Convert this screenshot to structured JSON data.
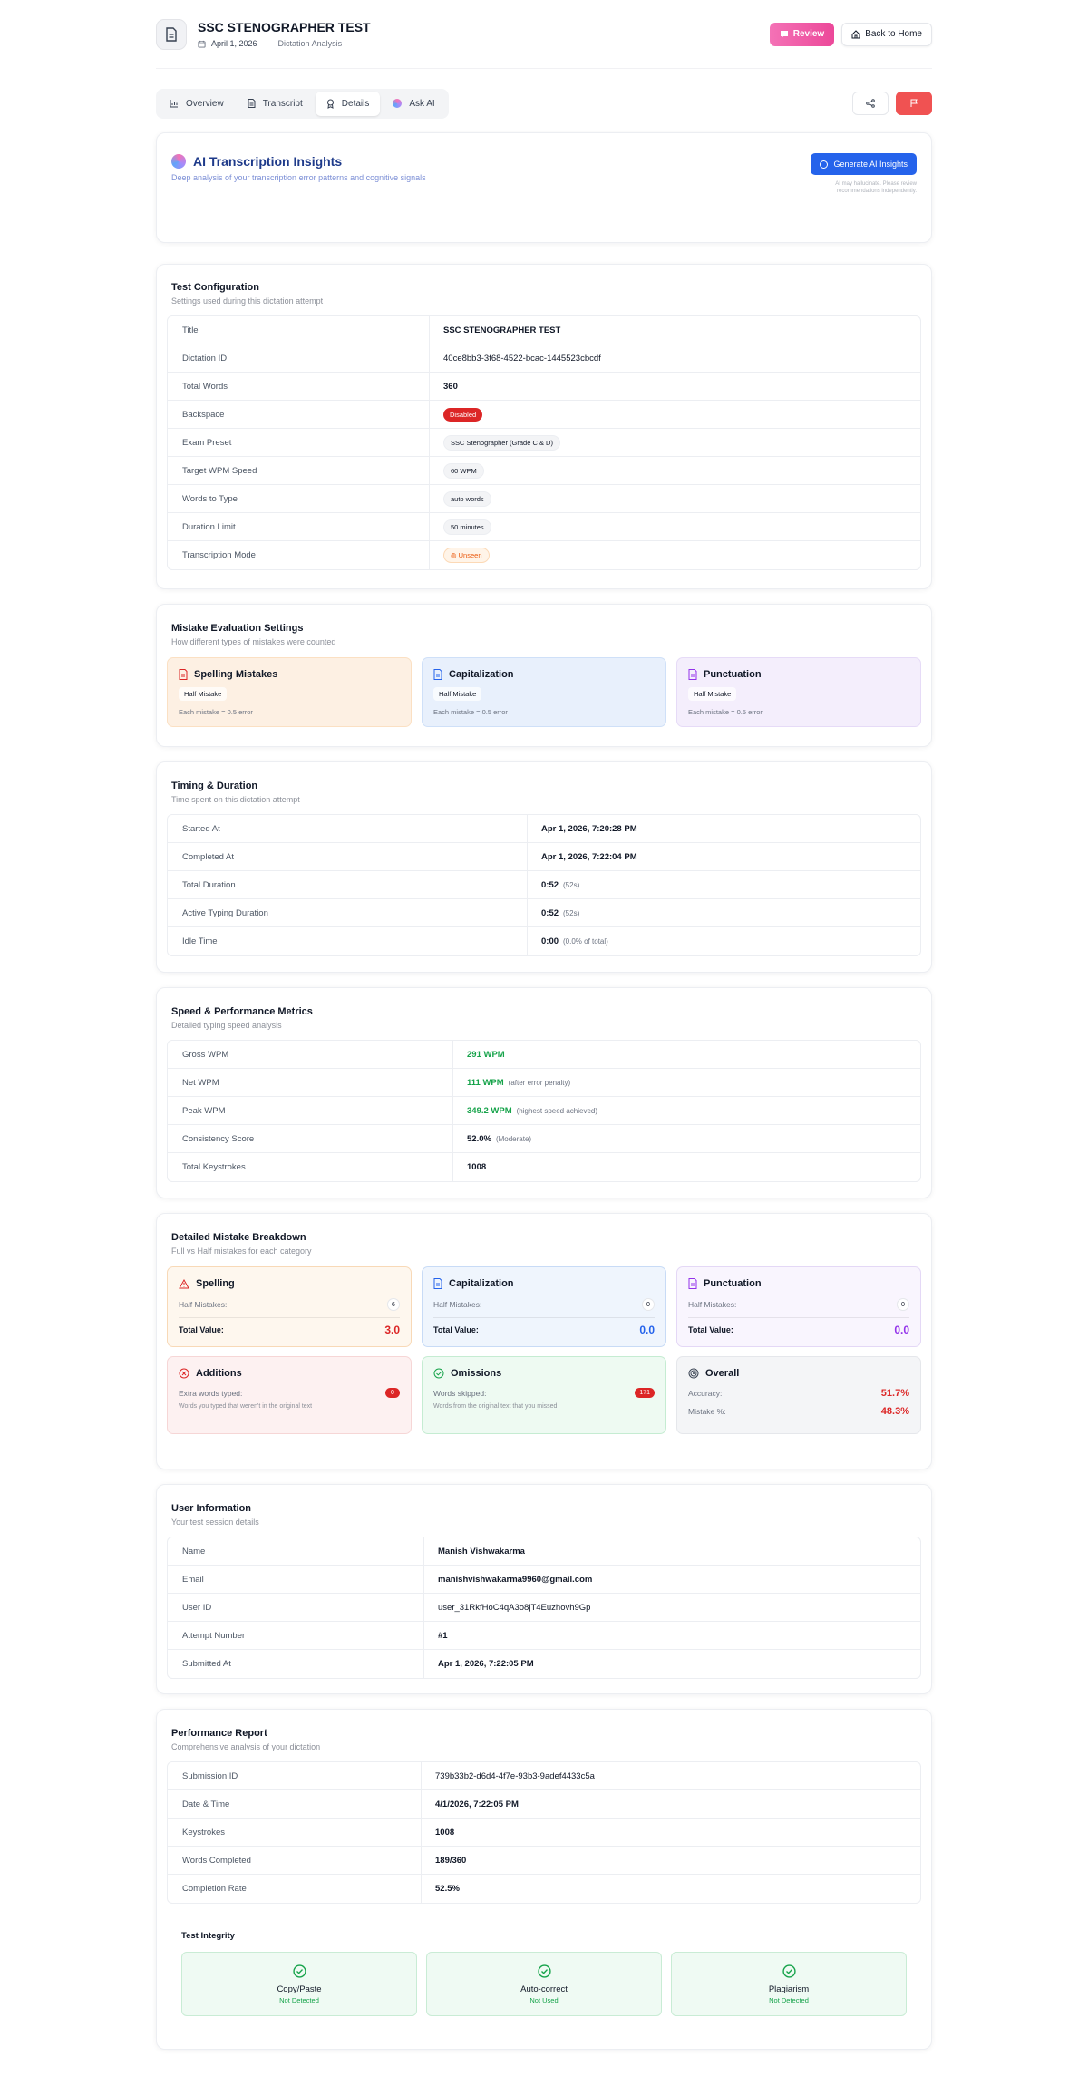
{
  "header": {
    "title": "SSC STENOGRAPHER TEST",
    "date": "April 1, 2026",
    "subtitle": "Dictation Analysis",
    "review_label": "Review",
    "home_label": "Back to Home"
  },
  "tabs": [
    {
      "label": "Overview",
      "icon": "bar-chart-icon"
    },
    {
      "label": "Transcript",
      "icon": "document-icon"
    },
    {
      "label": "Details",
      "icon": "award-icon",
      "active": true
    },
    {
      "label": "Ask AI",
      "icon": "ai-orb-icon"
    }
  ],
  "ai_insights": {
    "title": "AI Transcription Insights",
    "subtitle": "Deep analysis of your transcription error patterns and cognitive signals",
    "button": "Generate AI Insights",
    "disclaimer": "AI may hallucinate. Please review recommendations independently."
  },
  "test_config": {
    "title": "Test Configuration",
    "subtitle": "Settings used during this dictation attempt",
    "rows": [
      {
        "label": "Title",
        "value": "SSC STENOGRAPHER TEST"
      },
      {
        "label": "Dictation ID",
        "value": "40ce8bb3-3f68-4522-bcac-1445523cbcdf"
      },
      {
        "label": "Total Words",
        "value": "360"
      },
      {
        "label": "Backspace",
        "value": "Disabled"
      },
      {
        "label": "Exam Preset",
        "value": "SSC Stenographer (Grade C & D)"
      },
      {
        "label": "Target WPM Speed",
        "value": "60 WPM"
      },
      {
        "label": "Words to Type",
        "value": "auto words"
      },
      {
        "label": "Duration Limit",
        "value": "50 minutes"
      },
      {
        "label": "Transcription Mode",
        "value": "Unseen"
      }
    ]
  },
  "mistake_settings": {
    "title": "Mistake Evaluation Settings",
    "subtitle": "How different types of mistakes were counted",
    "tiles": [
      {
        "name": "Spelling Mistakes",
        "badge": "Half Mistake",
        "note": "Each mistake = 0.5 error"
      },
      {
        "name": "Capitalization",
        "badge": "Half Mistake",
        "note": "Each mistake = 0.5 error"
      },
      {
        "name": "Punctuation",
        "badge": "Half Mistake",
        "note": "Each mistake = 0.5 error"
      }
    ]
  },
  "timing": {
    "title": "Timing & Duration",
    "subtitle": "Time spent on this dictation attempt",
    "rows": [
      {
        "label": "Started At",
        "value": "Apr 1, 2026, 7:20:28 PM",
        "extra": ""
      },
      {
        "label": "Completed At",
        "value": "Apr 1, 2026, 7:22:04 PM",
        "extra": ""
      },
      {
        "label": "Total Duration",
        "value": "0:52",
        "extra": "(52s)"
      },
      {
        "label": "Active Typing Duration",
        "value": "0:52",
        "extra": "(52s)"
      },
      {
        "label": "Idle Time",
        "value": "0:00",
        "extra": "(0.0% of total)"
      }
    ]
  },
  "speed": {
    "title": "Speed & Performance Metrics",
    "subtitle": "Detailed typing speed analysis",
    "rows": [
      {
        "label": "Gross WPM",
        "value": "291 WPM",
        "extra": ""
      },
      {
        "label": "Net WPM",
        "value": "111 WPM",
        "extra": "(after error penalty)"
      },
      {
        "label": "Peak WPM",
        "value": "349.2 WPM",
        "extra": "(highest speed achieved)"
      },
      {
        "label": "Consistency Score",
        "value": "52.0%",
        "extra": "(Moderate)"
      },
      {
        "label": "Total Keystrokes",
        "value": "1008",
        "extra": ""
      }
    ]
  },
  "breakdown": {
    "title": "Detailed Mistake Breakdown",
    "subtitle": "Full vs Half mistakes for each category",
    "half_label": "Half Mistakes:",
    "total_label": "Total Value:",
    "spelling": {
      "name": "Spelling",
      "half": "6",
      "total": "3.0"
    },
    "capitalization": {
      "name": "Capitalization",
      "half": "0",
      "total": "0.0"
    },
    "punctuation": {
      "name": "Punctuation",
      "half": "0",
      "total": "0.0"
    },
    "additions": {
      "name": "Additions",
      "label": "Extra words typed:",
      "count": "0",
      "note": "Words you typed that weren't in the original text"
    },
    "omissions": {
      "name": "Omissions",
      "label": "Words skipped:",
      "count": "171",
      "note": "Words from the original text that you missed"
    },
    "overall": {
      "name": "Overall",
      "accuracy_label": "Accuracy:",
      "accuracy": "51.7%",
      "mistake_label": "Mistake %:",
      "mistake": "48.3%"
    }
  },
  "user_info": {
    "title": "User Information",
    "subtitle": "Your test session details",
    "rows": [
      {
        "label": "Name",
        "value": "Manish Vishwakarma",
        "bold": true
      },
      {
        "label": "Email",
        "value": "manishvishwakarma9960@gmail.com",
        "bold": true
      },
      {
        "label": "User ID",
        "value": "user_31RkfHoC4qA3o8jT4Euzhovh9Gp",
        "bold": false
      },
      {
        "label": "Attempt Number",
        "value": "#1",
        "bold": true
      },
      {
        "label": "Submitted At",
        "value": "Apr 1, 2026, 7:22:05 PM",
        "bold": true
      }
    ]
  },
  "report": {
    "title": "Performance Report",
    "subtitle": "Comprehensive analysis of your dictation",
    "rows": [
      {
        "label": "Submission ID",
        "value": "739b33b2-d6d4-4f7e-93b3-9adef4433c5a",
        "bold": false
      },
      {
        "label": "Date & Time",
        "value": "4/1/2026, 7:22:05 PM",
        "bold": true
      },
      {
        "label": "Keystrokes",
        "value": "1008",
        "bold": true
      },
      {
        "label": "Words Completed",
        "value": "189/360",
        "bold": true
      },
      {
        "label": "Completion Rate",
        "value": "52.5%",
        "bold": true
      }
    ],
    "integrity_title": "Test Integrity",
    "integrity": [
      {
        "name": "Copy/Paste",
        "status": "Not Detected"
      },
      {
        "name": "Auto-correct",
        "status": "Not Used"
      },
      {
        "name": "Plagiarism",
        "status": "Not Detected"
      }
    ]
  },
  "colors": {
    "accent": "#2563eb",
    "review": "#ec4899",
    "danger": "#dc2626",
    "success": "#16a34a"
  }
}
